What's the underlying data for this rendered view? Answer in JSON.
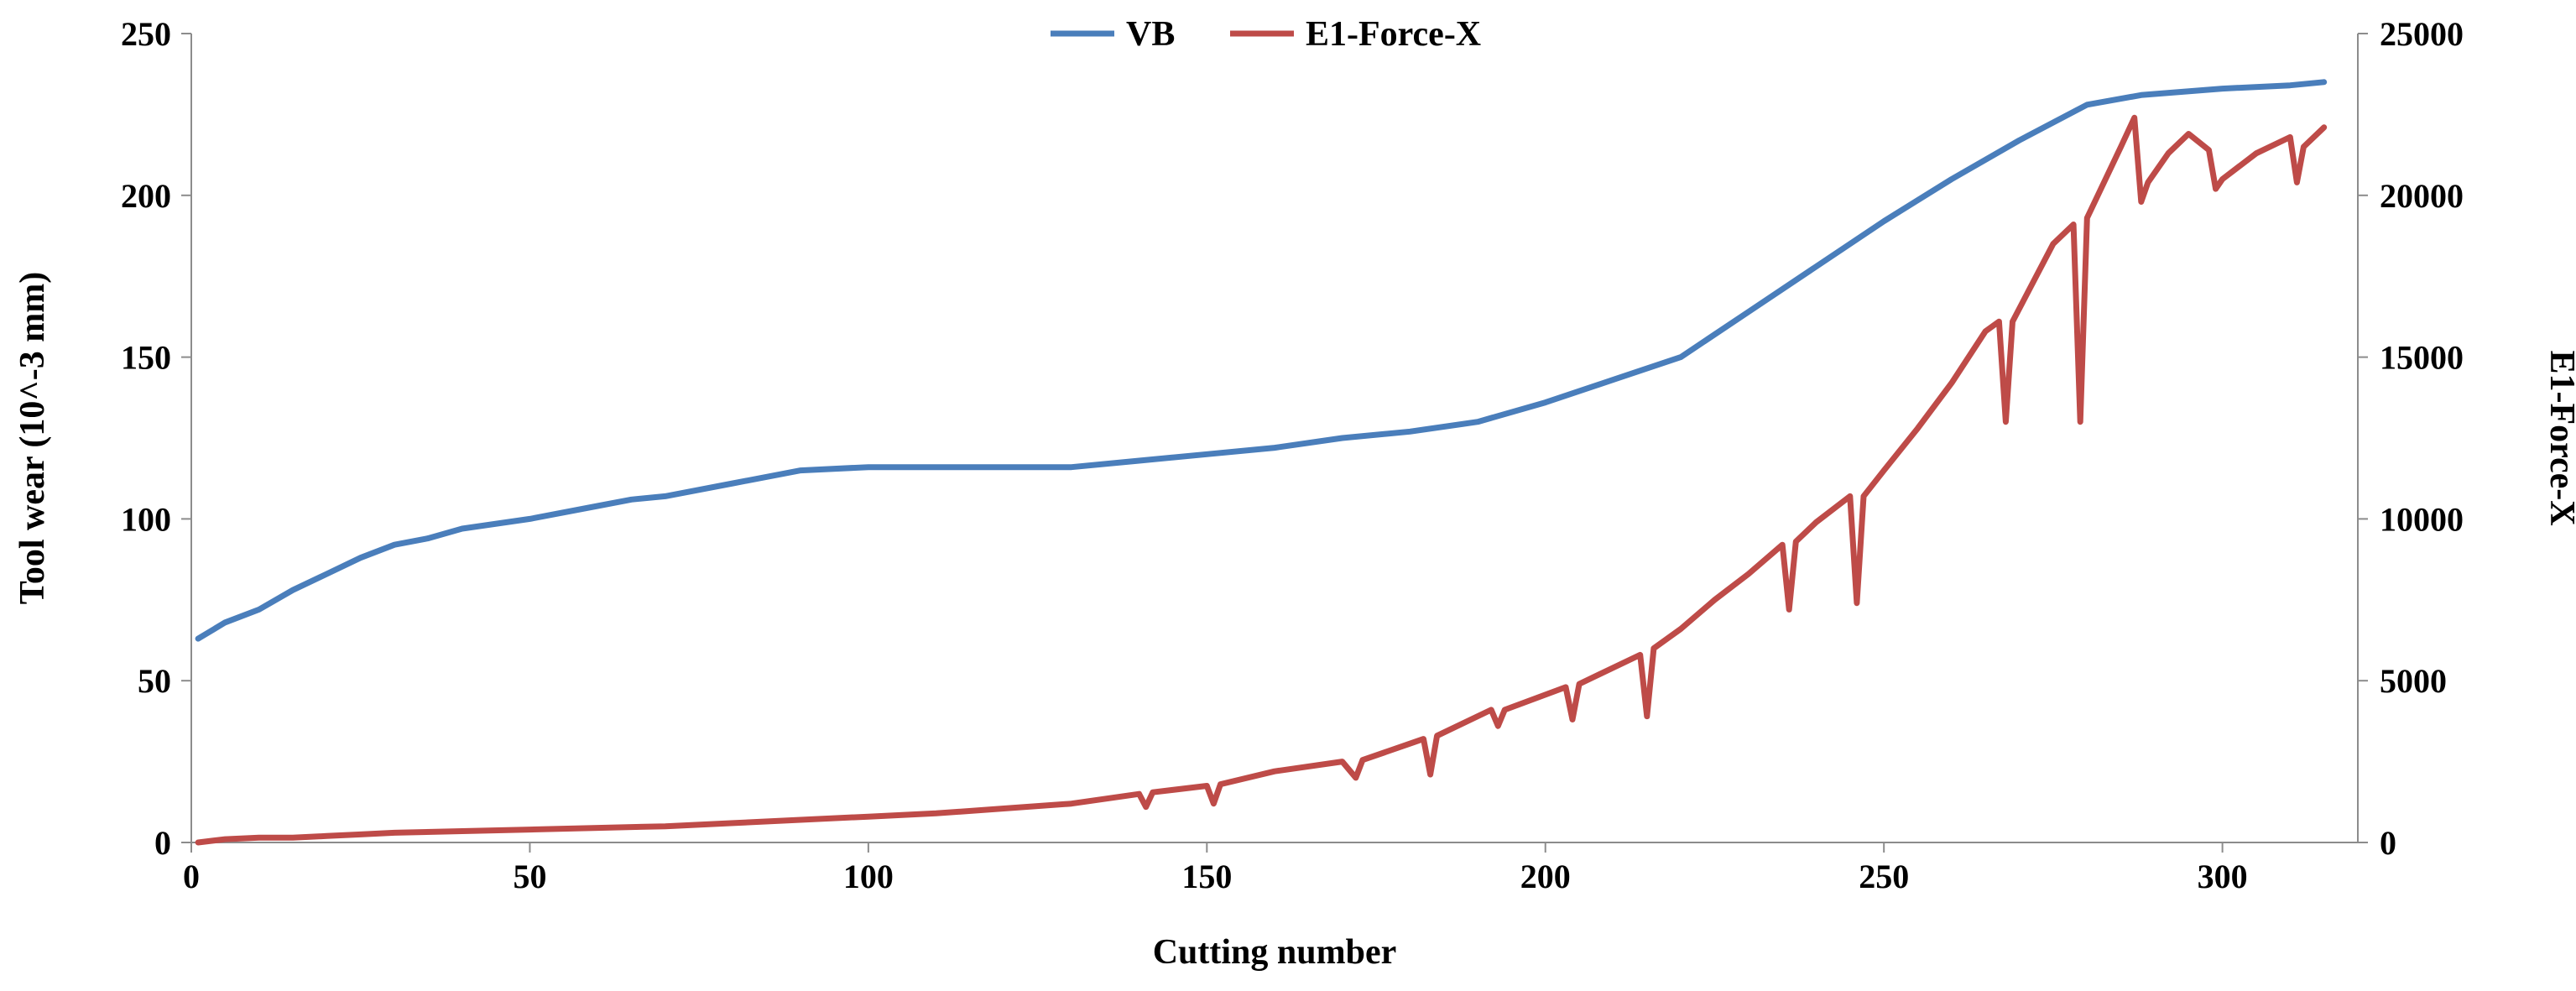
{
  "chart_data": {
    "type": "line",
    "title": "",
    "xlabel": "Cutting number",
    "ylabel": "Tool wear (10^-3 mm)",
    "y2label": "E1-Force-X",
    "xlim": [
      0,
      320
    ],
    "ylim": [
      0,
      250
    ],
    "y2lim": [
      0,
      25000
    ],
    "xticks": [
      "0",
      "50",
      "100",
      "150",
      "200",
      "250",
      "300"
    ],
    "yticks": [
      "0",
      "50",
      "100",
      "150",
      "200",
      "250"
    ],
    "y2ticks": [
      "0",
      "5000",
      "10000",
      "15000",
      "20000",
      "25000"
    ],
    "legend_position": "top-center",
    "grid": false,
    "series": [
      {
        "name": "VB",
        "axis": "left",
        "color": "#4a7ebb",
        "x": [
          1,
          5,
          10,
          15,
          20,
          25,
          30,
          35,
          40,
          50,
          60,
          65,
          70,
          80,
          90,
          100,
          110,
          120,
          130,
          140,
          150,
          160,
          170,
          180,
          190,
          200,
          210,
          220,
          230,
          240,
          250,
          260,
          270,
          280,
          288,
          300,
          310,
          315
        ],
        "values": [
          63,
          68,
          72,
          78,
          83,
          88,
          92,
          94,
          97,
          100,
          104,
          106,
          107,
          111,
          115,
          116,
          116,
          116,
          116,
          118,
          120,
          122,
          125,
          127,
          130,
          136,
          143,
          150,
          164,
          178,
          192,
          205,
          217,
          228,
          231,
          233,
          234,
          235
        ]
      },
      {
        "name": "E1-Force-X",
        "axis": "right",
        "color": "#be4b48",
        "x": [
          1,
          5,
          10,
          15,
          20,
          25,
          30,
          40,
          50,
          60,
          70,
          80,
          90,
          100,
          110,
          120,
          130,
          140,
          141,
          142,
          150,
          151,
          152,
          160,
          170,
          172,
          173,
          182,
          183,
          184,
          192,
          193,
          194,
          203,
          204,
          205,
          214,
          215,
          216,
          220,
          225,
          230,
          235,
          236,
          237,
          240,
          245,
          246,
          247,
          250,
          255,
          260,
          265,
          267,
          268,
          269,
          275,
          278,
          279,
          280,
          285,
          287,
          288,
          289,
          292,
          295,
          298,
          299,
          300,
          305,
          310,
          311,
          312,
          315
        ],
        "values": [
          0,
          100,
          150,
          150,
          200,
          250,
          300,
          350,
          400,
          450,
          500,
          600,
          700,
          800,
          900,
          1050,
          1200,
          1500,
          1100,
          1550,
          1750,
          1200,
          1800,
          2200,
          2500,
          2000,
          2550,
          3200,
          2100,
          3300,
          4100,
          3600,
          4100,
          4800,
          3800,
          4900,
          5800,
          3900,
          6000,
          6600,
          7500,
          8300,
          9200,
          7200,
          9300,
          9900,
          10700,
          7400,
          10700,
          11500,
          12800,
          14200,
          15800,
          16100,
          13000,
          16100,
          18500,
          19100,
          13000,
          19300,
          21500,
          22400,
          19800,
          20400,
          21300,
          21900,
          21400,
          20200,
          20500,
          21300,
          21800,
          20400,
          21500,
          22100
        ]
      }
    ]
  }
}
